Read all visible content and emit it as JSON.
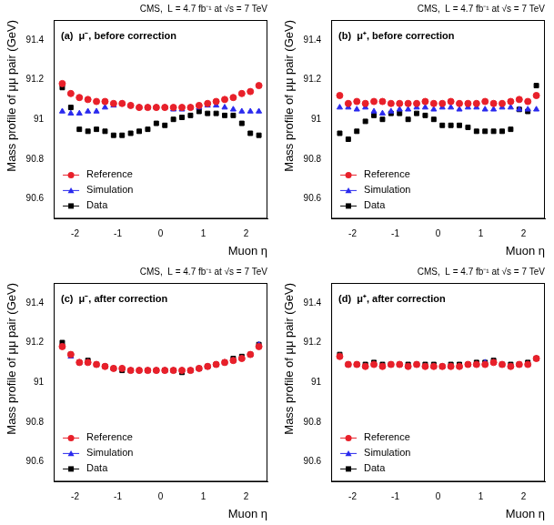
{
  "chart_data": [
    {
      "type": "scatter",
      "title": "CMS,  L = 4.7 fb⁻¹ at √s = 7 TeV",
      "subtitle": "(a)  μ⁻, before correction",
      "x_label": "Muon η",
      "y_label": "Mass profile of μμ pair (GeV)",
      "xlim": [
        -2.5,
        2.5
      ],
      "xticks": [
        -2,
        -1,
        0,
        1,
        2
      ],
      "ylim": [
        90.5,
        91.5
      ],
      "yticks": [
        90.6,
        90.8,
        91,
        91.2,
        91.4
      ],
      "grid": false,
      "legend": "lower left",
      "x": [
        -2.3,
        -2.1,
        -1.9,
        -1.7,
        -1.5,
        -1.3,
        -1.1,
        -0.9,
        -0.7,
        -0.5,
        -0.3,
        -0.1,
        0.1,
        0.3,
        0.5,
        0.7,
        0.9,
        1.1,
        1.3,
        1.5,
        1.7,
        1.9,
        2.1,
        2.3
      ],
      "series": [
        {
          "name": "Reference",
          "color": "#e8202a",
          "marker": "circle",
          "values": [
            91.18,
            91.13,
            91.11,
            91.1,
            91.09,
            91.09,
            91.08,
            91.08,
            91.07,
            91.06,
            91.06,
            91.06,
            91.06,
            91.06,
            91.06,
            91.06,
            91.07,
            91.08,
            91.09,
            91.1,
            91.11,
            91.13,
            91.14,
            91.17
          ]
        },
        {
          "name": "Simulation",
          "color": "#2a2aee",
          "marker": "triangle",
          "values": [
            91.04,
            91.03,
            91.03,
            91.04,
            91.04,
            91.06,
            91.07,
            91.08,
            91.07,
            91.06,
            91.06,
            91.06,
            91.06,
            91.05,
            91.05,
            91.06,
            91.06,
            91.07,
            91.07,
            91.06,
            91.05,
            91.04,
            91.04,
            91.04
          ]
        },
        {
          "name": "Data",
          "color": "#000000",
          "marker": "square",
          "values": [
            91.16,
            91.06,
            90.95,
            90.94,
            90.95,
            90.94,
            90.92,
            90.92,
            90.93,
            90.94,
            90.95,
            90.98,
            90.97,
            91.0,
            91.01,
            91.02,
            91.04,
            91.03,
            91.03,
            91.02,
            91.02,
            90.98,
            90.93,
            90.92
          ]
        }
      ]
    },
    {
      "type": "scatter",
      "title": "CMS,  L = 4.7 fb⁻¹ at √s = 7 TeV",
      "subtitle": "(b)  μ⁺, before correction",
      "x_label": "Muon η",
      "y_label": "Mass profile of μμ pair (GeV)",
      "xlim": [
        -2.5,
        2.5
      ],
      "xticks": [
        -2,
        -1,
        0,
        1,
        2
      ],
      "ylim": [
        90.5,
        91.5
      ],
      "yticks": [
        90.6,
        90.8,
        91,
        91.2,
        91.4
      ],
      "grid": false,
      "legend": "lower left",
      "x": [
        -2.3,
        -2.1,
        -1.9,
        -1.7,
        -1.5,
        -1.3,
        -1.1,
        -0.9,
        -0.7,
        -0.5,
        -0.3,
        -0.1,
        0.1,
        0.3,
        0.5,
        0.7,
        0.9,
        1.1,
        1.3,
        1.5,
        1.7,
        1.9,
        2.1,
        2.3
      ],
      "series": [
        {
          "name": "Reference",
          "color": "#e8202a",
          "marker": "circle",
          "values": [
            91.12,
            91.08,
            91.09,
            91.08,
            91.09,
            91.09,
            91.08,
            91.08,
            91.08,
            91.08,
            91.09,
            91.08,
            91.08,
            91.09,
            91.08,
            91.08,
            91.08,
            91.09,
            91.08,
            91.08,
            91.09,
            91.1,
            91.09,
            91.12
          ]
        },
        {
          "name": "Simulation",
          "color": "#2a2aee",
          "marker": "triangle",
          "values": [
            91.06,
            91.06,
            91.05,
            91.06,
            91.04,
            91.03,
            91.04,
            91.05,
            91.05,
            91.06,
            91.06,
            91.05,
            91.06,
            91.06,
            91.05,
            91.06,
            91.06,
            91.05,
            91.05,
            91.06,
            91.06,
            91.05,
            91.05,
            91.05
          ]
        },
        {
          "name": "Data",
          "color": "#000000",
          "marker": "square",
          "values": [
            90.93,
            90.9,
            90.94,
            90.99,
            91.02,
            91.0,
            91.03,
            91.03,
            91.0,
            91.03,
            91.02,
            91.0,
            90.97,
            90.97,
            90.97,
            90.96,
            90.94,
            90.94,
            90.94,
            90.94,
            90.95,
            91.05,
            91.04,
            91.17
          ]
        }
      ]
    },
    {
      "type": "scatter",
      "title": "CMS,  L = 4.7 fb⁻¹ at √s = 7 TeV",
      "subtitle": "(c)  μ⁻, after correction",
      "x_label": "Muon η",
      "y_label": "Mass profile of μμ pair (GeV)",
      "xlim": [
        -2.5,
        2.5
      ],
      "xticks": [
        -2,
        -1,
        0,
        1,
        2
      ],
      "ylim": [
        90.5,
        91.5
      ],
      "yticks": [
        90.6,
        90.8,
        91,
        91.2,
        91.4
      ],
      "grid": false,
      "legend": "lower left",
      "x": [
        -2.3,
        -2.1,
        -1.9,
        -1.7,
        -1.5,
        -1.3,
        -1.1,
        -0.9,
        -0.7,
        -0.5,
        -0.3,
        -0.1,
        0.1,
        0.3,
        0.5,
        0.7,
        0.9,
        1.1,
        1.3,
        1.5,
        1.7,
        1.9,
        2.1,
        2.3
      ],
      "series": [
        {
          "name": "Reference",
          "color": "#e8202a",
          "marker": "circle",
          "values": [
            91.18,
            91.14,
            91.1,
            91.1,
            91.09,
            91.08,
            91.07,
            91.07,
            91.06,
            91.06,
            91.06,
            91.06,
            91.06,
            91.06,
            91.06,
            91.06,
            91.07,
            91.08,
            91.09,
            91.1,
            91.11,
            91.12,
            91.14,
            91.18
          ]
        },
        {
          "name": "Simulation",
          "color": "#2a2aee",
          "marker": "triangle",
          "values": [
            91.18,
            91.13,
            91.1,
            91.1,
            91.09,
            91.08,
            91.07,
            91.07,
            91.06,
            91.06,
            91.06,
            91.06,
            91.06,
            91.06,
            91.06,
            91.06,
            91.07,
            91.08,
            91.09,
            91.1,
            91.11,
            91.12,
            91.14,
            91.19
          ]
        },
        {
          "name": "Data",
          "color": "#000000",
          "marker": "square",
          "values": [
            91.2,
            91.14,
            91.1,
            91.11,
            91.09,
            91.08,
            91.07,
            91.06,
            91.06,
            91.06,
            91.06,
            91.06,
            91.06,
            91.06,
            91.05,
            91.06,
            91.07,
            91.08,
            91.09,
            91.1,
            91.12,
            91.13,
            91.14,
            91.19
          ]
        }
      ]
    },
    {
      "type": "scatter",
      "title": "CMS,  L = 4.7 fb⁻¹ at √s = 7 TeV",
      "subtitle": "(d)  μ⁺, after correction",
      "x_label": "Muon η",
      "y_label": "Mass profile of μμ pair (GeV)",
      "xlim": [
        -2.5,
        2.5
      ],
      "xticks": [
        -2,
        -1,
        0,
        1,
        2
      ],
      "ylim": [
        90.5,
        91.5
      ],
      "yticks": [
        90.6,
        90.8,
        91,
        91.2,
        91.4
      ],
      "grid": false,
      "legend": "lower left",
      "x": [
        -2.3,
        -2.1,
        -1.9,
        -1.7,
        -1.5,
        -1.3,
        -1.1,
        -0.9,
        -0.7,
        -0.5,
        -0.3,
        -0.1,
        0.1,
        0.3,
        0.5,
        0.7,
        0.9,
        1.1,
        1.3,
        1.5,
        1.7,
        1.9,
        2.1,
        2.3
      ],
      "series": [
        {
          "name": "Reference",
          "color": "#e8202a",
          "marker": "circle",
          "values": [
            91.13,
            91.09,
            91.09,
            91.08,
            91.09,
            91.08,
            91.09,
            91.09,
            91.08,
            91.09,
            91.08,
            91.08,
            91.08,
            91.08,
            91.08,
            91.09,
            91.09,
            91.09,
            91.1,
            91.09,
            91.08,
            91.09,
            91.09,
            91.12
          ]
        },
        {
          "name": "Simulation",
          "color": "#2a2aee",
          "marker": "triangle",
          "values": [
            91.13,
            91.09,
            91.09,
            91.08,
            91.09,
            91.08,
            91.09,
            91.09,
            91.08,
            91.09,
            91.08,
            91.08,
            91.08,
            91.08,
            91.08,
            91.09,
            91.09,
            91.1,
            91.1,
            91.09,
            91.08,
            91.09,
            91.09,
            91.12
          ]
        },
        {
          "name": "Data",
          "color": "#000000",
          "marker": "square",
          "values": [
            91.14,
            91.09,
            91.09,
            91.09,
            91.1,
            91.09,
            91.09,
            91.09,
            91.09,
            91.09,
            91.09,
            91.09,
            91.08,
            91.09,
            91.09,
            91.09,
            91.1,
            91.1,
            91.11,
            91.09,
            91.09,
            91.09,
            91.1,
            91.12
          ]
        }
      ]
    }
  ]
}
